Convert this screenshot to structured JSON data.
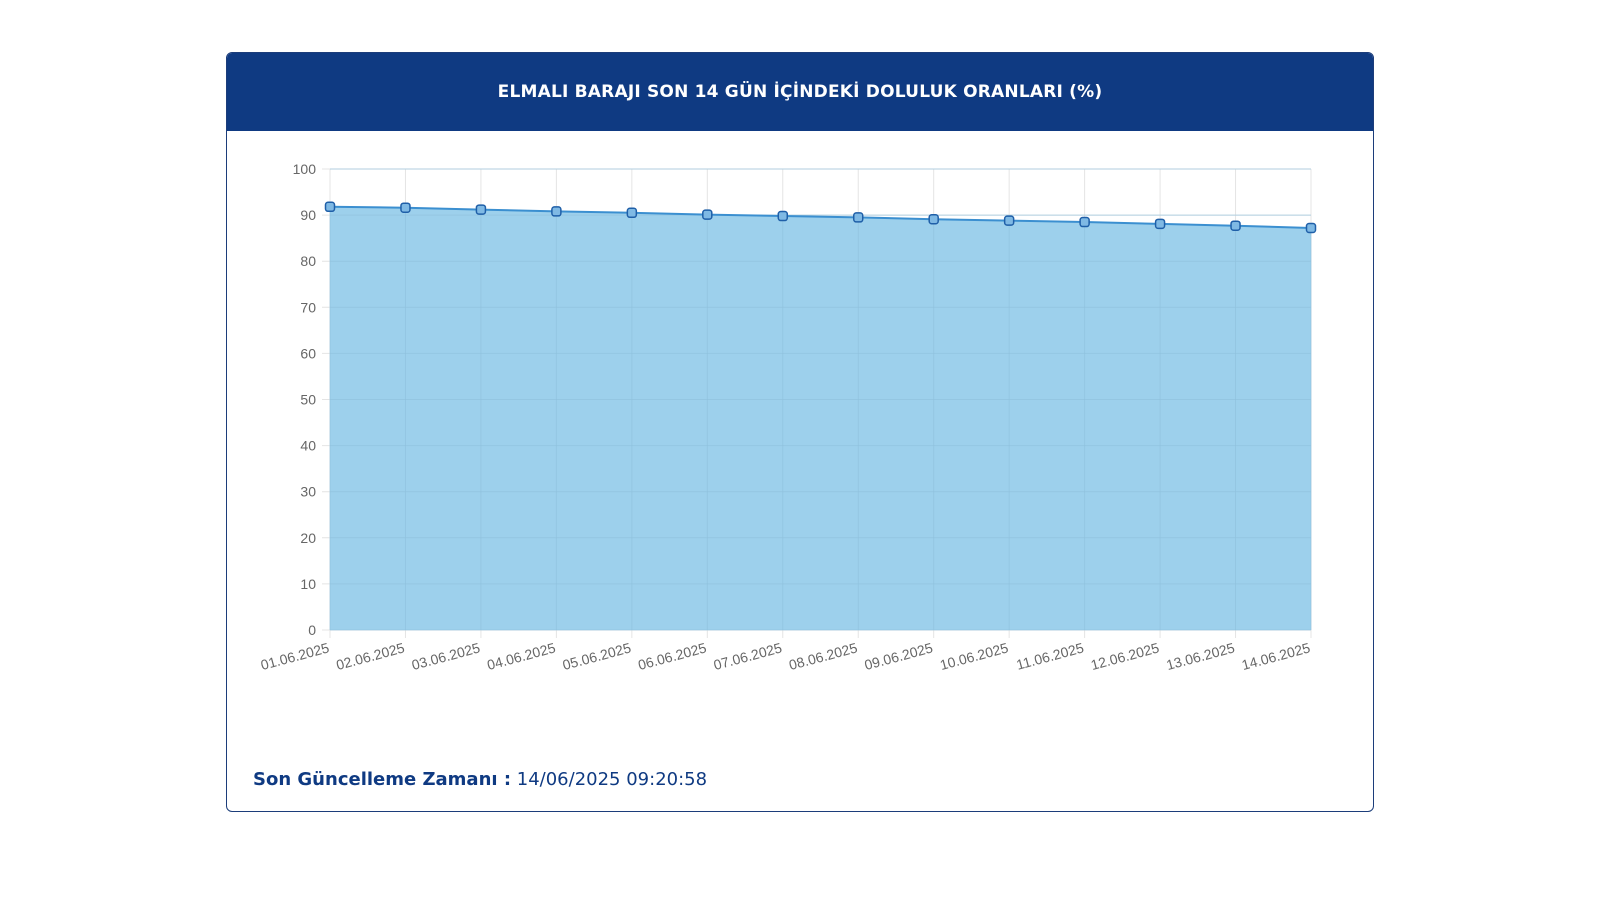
{
  "header": {
    "title": "ELMALI BARAJI SON 14 GÜN İÇİNDEKİ DOLULUK ORANLARI (%)"
  },
  "footer": {
    "label": "Son Güncelleme Zamanı :",
    "value": "14/06/2025 09:20:58"
  },
  "colors": {
    "header_bg": "#0f3a82",
    "area_fill": "#9dd0ec",
    "line": "#3b8fd0",
    "point_stroke": "#1f5fa8",
    "grid": "#e4e4e4",
    "text": "#0f3a82"
  },
  "chart_data": {
    "type": "area",
    "title": "ELMALI BARAJI SON 14 GÜN İÇİNDEKİ DOLULUK ORANLARI (%)",
    "xlabel": "",
    "ylabel": "",
    "categories": [
      "01.06.2025",
      "02.06.2025",
      "03.06.2025",
      "04.06.2025",
      "05.06.2025",
      "06.06.2025",
      "07.06.2025",
      "08.06.2025",
      "09.06.2025",
      "10.06.2025",
      "11.06.2025",
      "12.06.2025",
      "13.06.2025",
      "14.06.2025"
    ],
    "values": [
      91.8,
      91.6,
      91.2,
      90.8,
      90.5,
      90.1,
      89.8,
      89.5,
      89.1,
      88.8,
      88.5,
      88.1,
      87.7,
      87.2
    ],
    "ylim": [
      0,
      100
    ],
    "yticks": [
      "0",
      "10",
      "20",
      "30",
      "40",
      "50",
      "60",
      "70",
      "80",
      "90",
      "100"
    ],
    "grid": true,
    "legend": "none"
  }
}
